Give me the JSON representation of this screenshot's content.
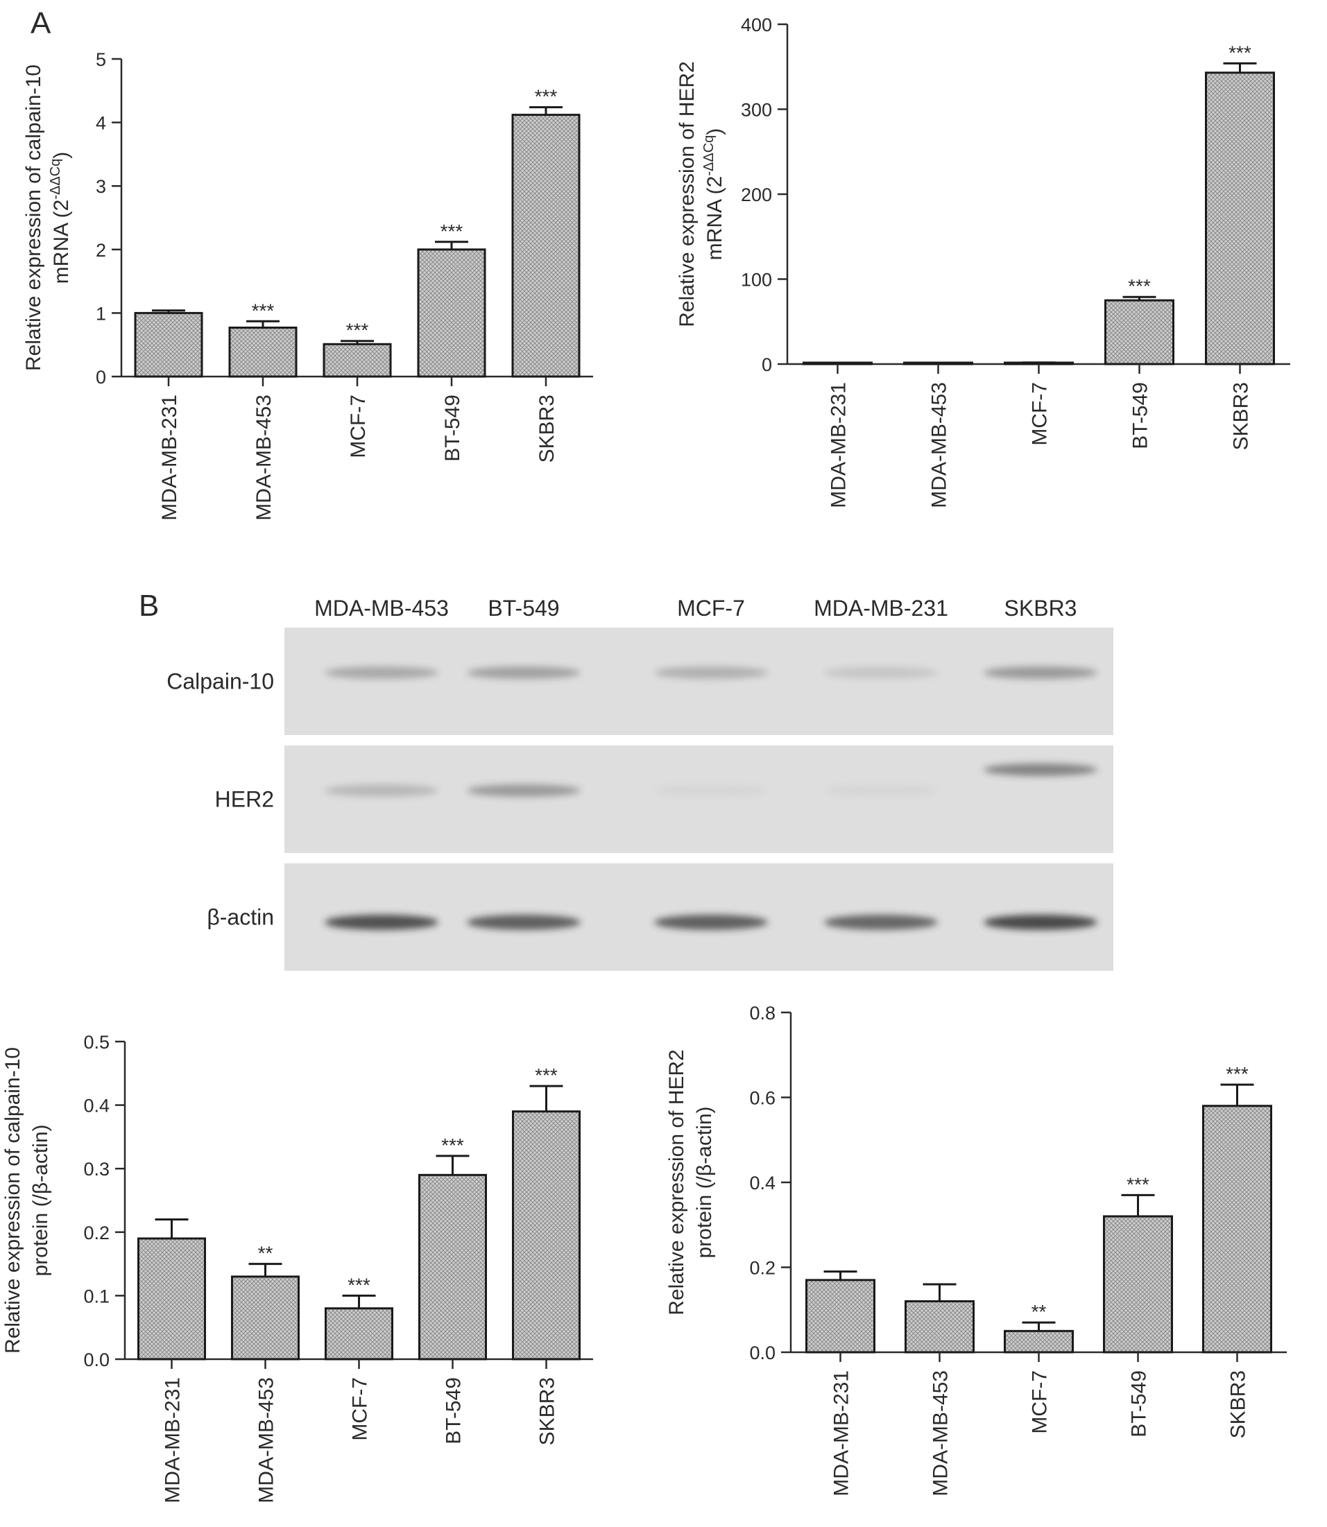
{
  "panels": {
    "a": "A",
    "b": "B"
  },
  "blot": {
    "lanes": [
      "MDA-MB-453",
      "BT-549",
      "MCF-7",
      "MDA-MB-231",
      "SKBR3"
    ],
    "rows": [
      {
        "label": "Calpain-10",
        "band_intensity": [
          0.35,
          0.4,
          0.3,
          0.15,
          0.45
        ]
      },
      {
        "label": "HER2",
        "band_intensity": [
          0.25,
          0.45,
          0.05,
          0.05,
          0.6
        ]
      },
      {
        "label": "β-actin",
        "band_intensity": [
          0.95,
          0.85,
          0.85,
          0.8,
          1.0
        ]
      }
    ]
  },
  "colors": {
    "bar_fill": "#c9c9c9",
    "bar_stroke": "#1a1a1a",
    "axis": "#2a2a2a",
    "blot_background": "#dedede",
    "band": "#2e2e2e"
  },
  "chart_data": [
    {
      "type": "bar",
      "categories": [
        "MDA-MB-231",
        "MDA-MB-453",
        "MCF-7",
        "BT-549",
        "SKBR3"
      ],
      "values": [
        1.0,
        0.77,
        0.51,
        2.0,
        4.12
      ],
      "errors": [
        0.04,
        0.1,
        0.05,
        0.12,
        0.12
      ],
      "significance": [
        "",
        "***",
        "***",
        "***",
        "***"
      ],
      "ylabel_line1": "Relative expression of calpain-10",
      "ylabel_line2_base": "mRNA (2",
      "ylabel_line2_sup": "-ΔΔCq",
      "ylabel_line2_end": ")",
      "ylim": [
        0,
        5
      ],
      "yticks": [
        0,
        1,
        2,
        3,
        4,
        5
      ],
      "ytick_labels": [
        "0",
        "1",
        "2",
        "3",
        "4",
        "5"
      ]
    },
    {
      "type": "bar",
      "categories": [
        "MDA-MB-231",
        "MDA-MB-453",
        "MCF-7",
        "BT-549",
        "SKBR3"
      ],
      "values": [
        1.0,
        0.8,
        1.5,
        75,
        343
      ],
      "errors": [
        0.2,
        0.2,
        0.3,
        4,
        11
      ],
      "significance": [
        "",
        "",
        "",
        "***",
        "***"
      ],
      "ylabel_line1": "Relative expression of HER2",
      "ylabel_line2_base": "mRNA (2",
      "ylabel_line2_sup": "-ΔΔCq",
      "ylabel_line2_end": ")",
      "ylim": [
        0,
        400
      ],
      "yticks": [
        0,
        100,
        200,
        300,
        400
      ],
      "ytick_labels": [
        "0",
        "100",
        "200",
        "300",
        "400"
      ]
    },
    {
      "type": "bar",
      "categories": [
        "MDA-MB-231",
        "MDA-MB-453",
        "MCF-7",
        "BT-549",
        "SKBR3"
      ],
      "values": [
        0.19,
        0.13,
        0.08,
        0.29,
        0.39
      ],
      "errors": [
        0.03,
        0.02,
        0.02,
        0.03,
        0.04
      ],
      "significance": [
        "",
        "**",
        "***",
        "***",
        "***"
      ],
      "ylabel_line1": "Relative expression of calpain-10",
      "ylabel_line2_base": "protein (/β-actin)",
      "ylabel_line2_sup": "",
      "ylabel_line2_end": "",
      "ylim": [
        0,
        0.5
      ],
      "yticks": [
        0,
        0.1,
        0.2,
        0.3,
        0.4,
        0.5
      ],
      "ytick_labels": [
        "0.0",
        "0.1",
        "0.2",
        "0.3",
        "0.4",
        "0.5"
      ]
    },
    {
      "type": "bar",
      "categories": [
        "MDA-MB-231",
        "MDA-MB-453",
        "MCF-7",
        "BT-549",
        "SKBR3"
      ],
      "values": [
        0.17,
        0.12,
        0.05,
        0.32,
        0.58
      ],
      "errors": [
        0.02,
        0.04,
        0.02,
        0.05,
        0.05
      ],
      "significance": [
        "",
        "",
        "**",
        "***",
        "***"
      ],
      "ylabel_line1": "Relative expression of HER2",
      "ylabel_line2_base": "protein (/β-actin)",
      "ylabel_line2_sup": "",
      "ylabel_line2_end": "",
      "ylim": [
        0,
        0.8
      ],
      "yticks": [
        0,
        0.2,
        0.4,
        0.6,
        0.8
      ],
      "ytick_labels": [
        "0.0",
        "0.2",
        "0.4",
        "0.6",
        "0.8"
      ]
    }
  ]
}
